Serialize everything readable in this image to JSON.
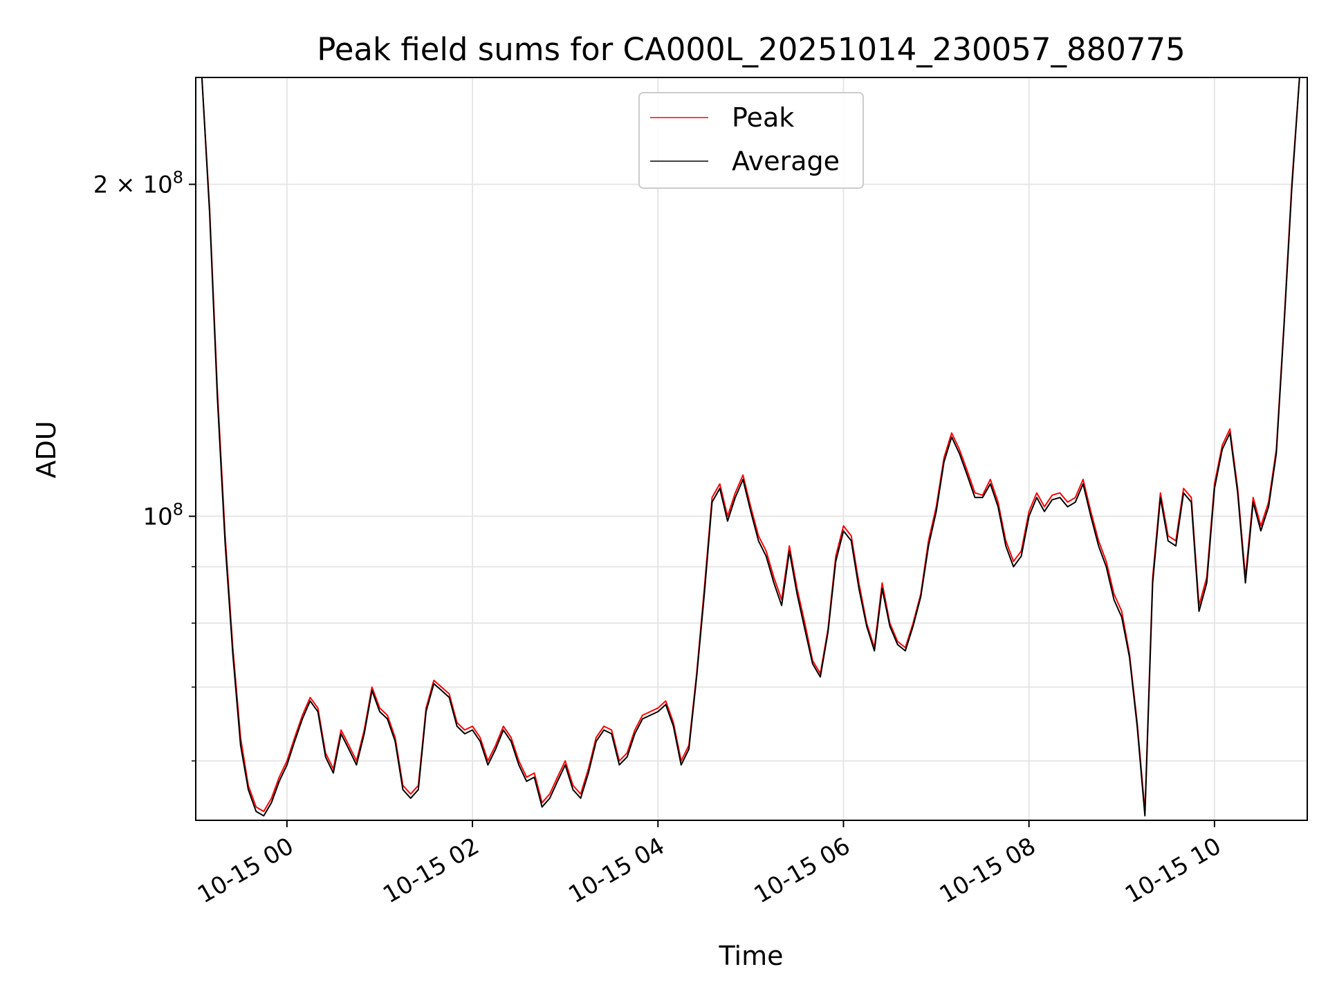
{
  "chart_data": {
    "type": "line",
    "title": "Peak field sums for CA000L_20251014_230057_880775",
    "xlabel": "Time",
    "ylabel": "ADU",
    "y_scale": "log",
    "ylim": [
      53000000,
      250000000
    ],
    "x_range": [
      "2025-10-14 23:01",
      "2025-10-15 11:00"
    ],
    "grid": true,
    "legend_position": "upper-center",
    "x_tick_labels": [
      {
        "time": "2025-10-15 00:00",
        "label": "10-15 00"
      },
      {
        "time": "2025-10-15 02:00",
        "label": "10-15 02"
      },
      {
        "time": "2025-10-15 04:00",
        "label": "10-15 04"
      },
      {
        "time": "2025-10-15 06:00",
        "label": "10-15 06"
      },
      {
        "time": "2025-10-15 08:00",
        "label": "10-15 08"
      },
      {
        "time": "2025-10-15 10:00",
        "label": "10-15 10"
      }
    ],
    "y_major_ticks": [
      {
        "value": 100000000,
        "mantissa": "",
        "base": "10",
        "exp": "8"
      },
      {
        "value": 200000000,
        "mantissa": "2 × ",
        "base": "10",
        "exp": "8"
      }
    ],
    "y_minor_ticks": [
      60000000,
      70000000,
      80000000,
      90000000
    ],
    "series": [
      {
        "name": "Peak",
        "color": "#ff0000",
        "x": [
          "2025-10-14 23:05",
          "2025-10-14 23:10",
          "2025-10-14 23:15",
          "2025-10-14 23:20",
          "2025-10-14 23:25",
          "2025-10-14 23:30",
          "2025-10-14 23:35",
          "2025-10-14 23:40",
          "2025-10-14 23:45",
          "2025-10-14 23:50",
          "2025-10-14 23:55",
          "2025-10-15 00:00",
          "2025-10-15 00:05",
          "2025-10-15 00:10",
          "2025-10-15 00:15",
          "2025-10-15 00:20",
          "2025-10-15 00:25",
          "2025-10-15 00:30",
          "2025-10-15 00:35",
          "2025-10-15 00:40",
          "2025-10-15 00:45",
          "2025-10-15 00:50",
          "2025-10-15 00:55",
          "2025-10-15 01:00",
          "2025-10-15 01:05",
          "2025-10-15 01:10",
          "2025-10-15 01:15",
          "2025-10-15 01:20",
          "2025-10-15 01:25",
          "2025-10-15 01:30",
          "2025-10-15 01:35",
          "2025-10-15 01:40",
          "2025-10-15 01:45",
          "2025-10-15 01:50",
          "2025-10-15 01:55",
          "2025-10-15 02:00",
          "2025-10-15 02:05",
          "2025-10-15 02:10",
          "2025-10-15 02:15",
          "2025-10-15 02:20",
          "2025-10-15 02:25",
          "2025-10-15 02:30",
          "2025-10-15 02:35",
          "2025-10-15 02:40",
          "2025-10-15 02:45",
          "2025-10-15 02:50",
          "2025-10-15 02:55",
          "2025-10-15 03:00",
          "2025-10-15 03:05",
          "2025-10-15 03:10",
          "2025-10-15 03:15",
          "2025-10-15 03:20",
          "2025-10-15 03:25",
          "2025-10-15 03:30",
          "2025-10-15 03:35",
          "2025-10-15 03:40",
          "2025-10-15 03:45",
          "2025-10-15 03:50",
          "2025-10-15 03:55",
          "2025-10-15 04:00",
          "2025-10-15 04:05",
          "2025-10-15 04:10",
          "2025-10-15 04:15",
          "2025-10-15 04:20",
          "2025-10-15 04:25",
          "2025-10-15 04:30",
          "2025-10-15 04:35",
          "2025-10-15 04:40",
          "2025-10-15 04:45",
          "2025-10-15 04:50",
          "2025-10-15 04:55",
          "2025-10-15 05:00",
          "2025-10-15 05:05",
          "2025-10-15 05:10",
          "2025-10-15 05:15",
          "2025-10-15 05:20",
          "2025-10-15 05:25",
          "2025-10-15 05:30",
          "2025-10-15 05:35",
          "2025-10-15 05:40",
          "2025-10-15 05:45",
          "2025-10-15 05:50",
          "2025-10-15 05:55",
          "2025-10-15 06:00",
          "2025-10-15 06:05",
          "2025-10-15 06:10",
          "2025-10-15 06:15",
          "2025-10-15 06:20",
          "2025-10-15 06:25",
          "2025-10-15 06:30",
          "2025-10-15 06:35",
          "2025-10-15 06:40",
          "2025-10-15 06:45",
          "2025-10-15 06:50",
          "2025-10-15 06:55",
          "2025-10-15 07:00",
          "2025-10-15 07:05",
          "2025-10-15 07:10",
          "2025-10-15 07:15",
          "2025-10-15 07:20",
          "2025-10-15 07:25",
          "2025-10-15 07:30",
          "2025-10-15 07:35",
          "2025-10-15 07:40",
          "2025-10-15 07:45",
          "2025-10-15 07:50",
          "2025-10-15 07:55",
          "2025-10-15 08:00",
          "2025-10-15 08:05",
          "2025-10-15 08:10",
          "2025-10-15 08:15",
          "2025-10-15 08:20",
          "2025-10-15 08:25",
          "2025-10-15 08:30",
          "2025-10-15 08:35",
          "2025-10-15 08:40",
          "2025-10-15 08:45",
          "2025-10-15 08:50",
          "2025-10-15 08:55",
          "2025-10-15 09:00",
          "2025-10-15 09:05",
          "2025-10-15 09:10",
          "2025-10-15 09:15",
          "2025-10-15 09:20",
          "2025-10-15 09:25",
          "2025-10-15 09:30",
          "2025-10-15 09:35",
          "2025-10-15 09:40",
          "2025-10-15 09:45",
          "2025-10-15 09:50",
          "2025-10-15 09:55",
          "2025-10-15 10:00",
          "2025-10-15 10:05",
          "2025-10-15 10:10",
          "2025-10-15 10:15",
          "2025-10-15 10:20",
          "2025-10-15 10:25",
          "2025-10-15 10:30",
          "2025-10-15 10:35",
          "2025-10-15 10:40",
          "2025-10-15 10:45",
          "2025-10-15 10:50",
          "2025-10-15 10:55"
        ],
        "y": [
          250000000,
          190000000,
          130000000,
          96000000,
          76000000,
          63000000,
          57000000,
          54500000,
          54000000,
          55500000,
          58000000,
          60000000,
          63000000,
          66000000,
          68500000,
          67000000,
          61000000,
          59000000,
          64000000,
          62000000,
          60000000,
          64000000,
          70000000,
          67000000,
          66000000,
          63000000,
          57000000,
          56000000,
          57000000,
          67000000,
          71000000,
          70000000,
          69000000,
          65000000,
          64000000,
          64500000,
          63000000,
          60000000,
          62000000,
          64500000,
          63000000,
          60000000,
          58000000,
          58500000,
          55000000,
          56000000,
          58000000,
          60000000,
          57000000,
          56000000,
          59000000,
          63000000,
          64500000,
          64000000,
          60000000,
          61000000,
          64000000,
          66000000,
          66500000,
          67000000,
          68000000,
          65000000,
          60000000,
          62000000,
          72000000,
          86000000,
          104000000,
          107000000,
          100000000,
          105000000,
          109000000,
          102000000,
          96000000,
          93000000,
          88000000,
          84000000,
          94000000,
          86000000,
          80000000,
          74000000,
          72000000,
          79000000,
          92000000,
          98000000,
          96000000,
          87000000,
          80000000,
          76000000,
          87000000,
          80000000,
          77000000,
          76000000,
          80000000,
          85000000,
          95000000,
          102000000,
          113000000,
          119000000,
          115000000,
          110000000,
          105000000,
          104500000,
          108000000,
          103000000,
          95000000,
          91000000,
          93000000,
          101000000,
          105000000,
          102000000,
          104500000,
          105000000,
          103000000,
          104000000,
          108000000,
          101000000,
          95000000,
          91000000,
          85000000,
          82000000,
          75000000,
          65000000,
          54000000,
          88000000,
          105000000,
          96000000,
          95000000,
          106000000,
          104000000,
          83000000,
          88000000,
          107000000,
          116000000,
          120000000,
          106000000,
          88000000,
          104000000,
          98000000,
          103000000,
          115000000,
          150000000,
          200000000,
          250000000
        ]
      },
      {
        "name": "Average",
        "color": "#000000",
        "x": [
          "2025-10-14 23:05",
          "2025-10-14 23:10",
          "2025-10-14 23:15",
          "2025-10-14 23:20",
          "2025-10-14 23:25",
          "2025-10-14 23:30",
          "2025-10-14 23:35",
          "2025-10-14 23:40",
          "2025-10-14 23:45",
          "2025-10-14 23:50",
          "2025-10-14 23:55",
          "2025-10-15 00:00",
          "2025-10-15 00:05",
          "2025-10-15 00:10",
          "2025-10-15 00:15",
          "2025-10-15 00:20",
          "2025-10-15 00:25",
          "2025-10-15 00:30",
          "2025-10-15 00:35",
          "2025-10-15 00:40",
          "2025-10-15 00:45",
          "2025-10-15 00:50",
          "2025-10-15 00:55",
          "2025-10-15 01:00",
          "2025-10-15 01:05",
          "2025-10-15 01:10",
          "2025-10-15 01:15",
          "2025-10-15 01:20",
          "2025-10-15 01:25",
          "2025-10-15 01:30",
          "2025-10-15 01:35",
          "2025-10-15 01:40",
          "2025-10-15 01:45",
          "2025-10-15 01:50",
          "2025-10-15 01:55",
          "2025-10-15 02:00",
          "2025-10-15 02:05",
          "2025-10-15 02:10",
          "2025-10-15 02:15",
          "2025-10-15 02:20",
          "2025-10-15 02:25",
          "2025-10-15 02:30",
          "2025-10-15 02:35",
          "2025-10-15 02:40",
          "2025-10-15 02:45",
          "2025-10-15 02:50",
          "2025-10-15 02:55",
          "2025-10-15 03:00",
          "2025-10-15 03:05",
          "2025-10-15 03:10",
          "2025-10-15 03:15",
          "2025-10-15 03:20",
          "2025-10-15 03:25",
          "2025-10-15 03:30",
          "2025-10-15 03:35",
          "2025-10-15 03:40",
          "2025-10-15 03:45",
          "2025-10-15 03:50",
          "2025-10-15 03:55",
          "2025-10-15 04:00",
          "2025-10-15 04:05",
          "2025-10-15 04:10",
          "2025-10-15 04:15",
          "2025-10-15 04:20",
          "2025-10-15 04:25",
          "2025-10-15 04:30",
          "2025-10-15 04:35",
          "2025-10-15 04:40",
          "2025-10-15 04:45",
          "2025-10-15 04:50",
          "2025-10-15 04:55",
          "2025-10-15 05:00",
          "2025-10-15 05:05",
          "2025-10-15 05:10",
          "2025-10-15 05:15",
          "2025-10-15 05:20",
          "2025-10-15 05:25",
          "2025-10-15 05:30",
          "2025-10-15 05:35",
          "2025-10-15 05:40",
          "2025-10-15 05:45",
          "2025-10-15 05:50",
          "2025-10-15 05:55",
          "2025-10-15 06:00",
          "2025-10-15 06:05",
          "2025-10-15 06:10",
          "2025-10-15 06:15",
          "2025-10-15 06:20",
          "2025-10-15 06:25",
          "2025-10-15 06:30",
          "2025-10-15 06:35",
          "2025-10-15 06:40",
          "2025-10-15 06:45",
          "2025-10-15 06:50",
          "2025-10-15 06:55",
          "2025-10-15 07:00",
          "2025-10-15 07:05",
          "2025-10-15 07:10",
          "2025-10-15 07:15",
          "2025-10-15 07:20",
          "2025-10-15 07:25",
          "2025-10-15 07:30",
          "2025-10-15 07:35",
          "2025-10-15 07:40",
          "2025-10-15 07:45",
          "2025-10-15 07:50",
          "2025-10-15 07:55",
          "2025-10-15 08:00",
          "2025-10-15 08:05",
          "2025-10-15 08:10",
          "2025-10-15 08:15",
          "2025-10-15 08:20",
          "2025-10-15 08:25",
          "2025-10-15 08:30",
          "2025-10-15 08:35",
          "2025-10-15 08:40",
          "2025-10-15 08:45",
          "2025-10-15 08:50",
          "2025-10-15 08:55",
          "2025-10-15 09:00",
          "2025-10-15 09:05",
          "2025-10-15 09:10",
          "2025-10-15 09:15",
          "2025-10-15 09:20",
          "2025-10-15 09:25",
          "2025-10-15 09:30",
          "2025-10-15 09:35",
          "2025-10-15 09:40",
          "2025-10-15 09:45",
          "2025-10-15 09:50",
          "2025-10-15 09:55",
          "2025-10-15 10:00",
          "2025-10-15 10:05",
          "2025-10-15 10:10",
          "2025-10-15 10:15",
          "2025-10-15 10:20",
          "2025-10-15 10:25",
          "2025-10-15 10:30",
          "2025-10-15 10:35",
          "2025-10-15 10:40",
          "2025-10-15 10:45",
          "2025-10-15 10:50",
          "2025-10-15 10:55"
        ],
        "y": [
          250000000,
          188000000,
          128000000,
          94500000,
          75000000,
          62000000,
          56500000,
          54000000,
          53500000,
          55000000,
          57500000,
          59500000,
          62500000,
          65500000,
          68000000,
          66500000,
          60500000,
          58500000,
          63500000,
          61500000,
          59500000,
          63500000,
          69500000,
          66500000,
          65500000,
          62500000,
          56500000,
          55500000,
          56500000,
          66500000,
          70500000,
          69500000,
          68500000,
          64500000,
          63500000,
          64000000,
          62500000,
          59500000,
          61500000,
          64000000,
          62500000,
          59500000,
          57500000,
          58000000,
          54500000,
          55500000,
          57500000,
          59500000,
          56500000,
          55500000,
          58500000,
          62500000,
          64000000,
          63500000,
          59500000,
          60500000,
          63500000,
          65500000,
          66000000,
          66500000,
          67500000,
          64500000,
          59500000,
          61500000,
          71500000,
          85000000,
          103000000,
          106000000,
          99000000,
          104000000,
          108000000,
          101000000,
          95000000,
          92000000,
          87000000,
          83000000,
          93000000,
          85000000,
          79000000,
          73500000,
          71500000,
          78500000,
          91000000,
          97000000,
          95000000,
          86000000,
          79500000,
          75500000,
          86000000,
          79500000,
          76500000,
          75500000,
          79500000,
          84500000,
          94000000,
          101000000,
          112000000,
          118000000,
          114000000,
          109000000,
          104000000,
          104000000,
          107000000,
          102000000,
          94000000,
          90000000,
          92000000,
          100000000,
          104000000,
          101000000,
          103500000,
          104000000,
          102000000,
          103000000,
          107000000,
          100000000,
          94000000,
          90000000,
          84000000,
          81000000,
          74500000,
          64500000,
          53500000,
          87000000,
          104000000,
          95000000,
          94000000,
          105000000,
          103000000,
          82000000,
          87000000,
          106000000,
          115000000,
          119000000,
          105000000,
          87000000,
          103000000,
          97000000,
          102000000,
          114000000,
          149000000,
          198000000,
          250000000
        ]
      }
    ]
  }
}
